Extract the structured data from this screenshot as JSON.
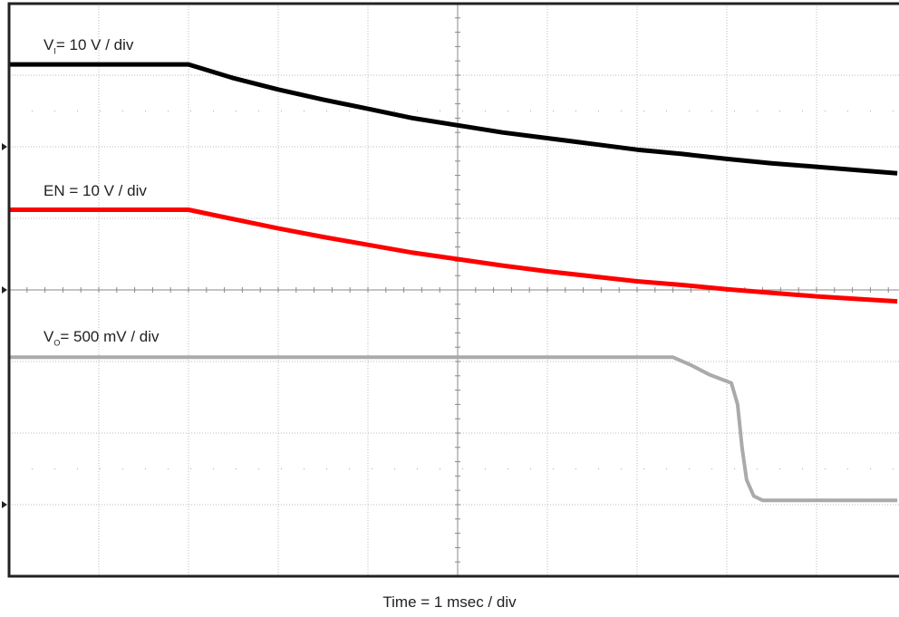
{
  "chart_data": {
    "type": "line",
    "xlabel": "Time = 1 msec / div",
    "grid": true,
    "x_divisions": 10,
    "y_divisions": 8,
    "xlim": [
      0,
      10
    ],
    "ylim": [
      0,
      8
    ],
    "series": [
      {
        "name": "VI = 10 V / div",
        "label_main": "V",
        "label_sub": "I",
        "label_rest": "= 10 V / div",
        "color": "#000000",
        "points": [
          [
            0,
            7.15
          ],
          [
            2.0,
            7.15
          ],
          [
            2.5,
            6.96
          ],
          [
            3.0,
            6.8
          ],
          [
            3.5,
            6.66
          ],
          [
            4.0,
            6.53
          ],
          [
            4.5,
            6.4
          ],
          [
            5.0,
            6.3
          ],
          [
            5.5,
            6.2
          ],
          [
            6.0,
            6.12
          ],
          [
            6.5,
            6.04
          ],
          [
            7.0,
            5.96
          ],
          [
            7.5,
            5.9
          ],
          [
            8.0,
            5.83
          ],
          [
            8.5,
            5.77
          ],
          [
            9.0,
            5.72
          ],
          [
            9.5,
            5.67
          ],
          [
            9.9,
            5.63
          ]
        ]
      },
      {
        "name": "EN = 10 V / div",
        "label_main": "EN = 10 V / div",
        "label_sub": "",
        "label_rest": "",
        "color": "#ff0000",
        "points": [
          [
            0,
            5.12
          ],
          [
            2.0,
            5.12
          ],
          [
            2.5,
            4.99
          ],
          [
            3.0,
            4.86
          ],
          [
            3.5,
            4.74
          ],
          [
            4.0,
            4.63
          ],
          [
            4.5,
            4.52
          ],
          [
            5.0,
            4.43
          ],
          [
            5.5,
            4.34
          ],
          [
            6.0,
            4.26
          ],
          [
            6.5,
            4.19
          ],
          [
            7.0,
            4.12
          ],
          [
            7.5,
            4.07
          ],
          [
            8.0,
            4.01
          ],
          [
            8.5,
            3.96
          ],
          [
            9.0,
            3.91
          ],
          [
            9.5,
            3.87
          ],
          [
            9.9,
            3.84
          ]
        ]
      },
      {
        "name": "VO = 500 mV / div",
        "label_main": "V",
        "label_sub": "O",
        "label_rest": "= 500 mV / div",
        "color": "#aaaaaa",
        "points": [
          [
            0,
            3.06
          ],
          [
            7.4,
            3.06
          ],
          [
            7.6,
            2.95
          ],
          [
            7.8,
            2.82
          ],
          [
            8.05,
            2.7
          ],
          [
            8.12,
            2.4
          ],
          [
            8.17,
            1.8
          ],
          [
            8.22,
            1.35
          ],
          [
            8.3,
            1.12
          ],
          [
            8.4,
            1.06
          ],
          [
            9.9,
            1.06
          ]
        ]
      }
    ],
    "channel_markers": [
      6,
      4,
      1
    ]
  }
}
